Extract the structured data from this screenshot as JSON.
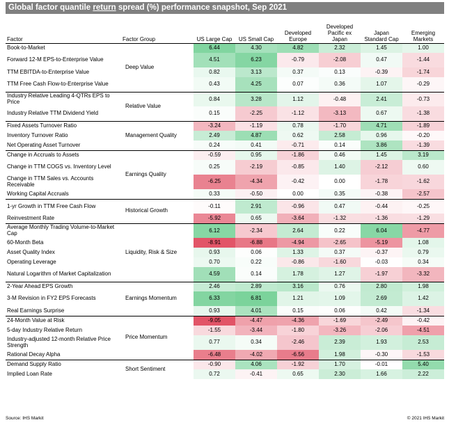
{
  "title": {
    "before": "Global factor quantile ",
    "underlined": "return",
    "after": " spread (%) performance snapshot, Sep 2021"
  },
  "headers": {
    "factor": "Factor",
    "group": "Factor Group",
    "columns": [
      "US Large Cap",
      "US Small Cap",
      "Developed Europe",
      "Developed Pacific ex Japan",
      "Japan Standard Cap",
      "Emerging Markets"
    ]
  },
  "groups": [
    {
      "name": "Deep Value",
      "rows": [
        {
          "factor": "Book-to-Market",
          "values": [
            "6.44",
            "4.30",
            "4.82",
            "2.32",
            "1.45",
            "1.00"
          ]
        },
        {
          "factor": "Forward 12-M EPS-to-Enterprise Value",
          "values": [
            "4.51",
            "6.23",
            "-0.79",
            "-2.08",
            "0.47",
            "-1.44"
          ]
        },
        {
          "factor": "TTM EBITDA-to-Enterprise Value",
          "values": [
            "0.82",
            "3.13",
            "0.37",
            "0.13",
            "-0.39",
            "-1.74"
          ]
        },
        {
          "factor": "TTM Free Cash Flow-to-Enterprise Value",
          "values": [
            "0.43",
            "4.25",
            "0.07",
            "0.36",
            "1.07",
            "-0.29"
          ]
        }
      ]
    },
    {
      "name": "Relative Value",
      "rows": [
        {
          "factor": "Industry Relative Leading 4-QTRs EPS to Price",
          "values": [
            "0.84",
            "3.28",
            "1.12",
            "-0.48",
            "2.41",
            "-0.73"
          ]
        },
        {
          "factor": "Industry Relative TTM Dividend Yield",
          "values": [
            "0.15",
            "-2.25",
            "-1.12",
            "-3.13",
            "0.67",
            "-1.38"
          ]
        }
      ]
    },
    {
      "name": "Management Quality",
      "rows": [
        {
          "factor": "Fixed Assets Turnover Ratio",
          "values": [
            "-3.24",
            "-1.19",
            "0.78",
            "-1.70",
            "4.71",
            "-1.89"
          ]
        },
        {
          "factor": "Inventory Turnover Ratio",
          "values": [
            "2.49",
            "4.87",
            "0.62",
            "2.58",
            "0.96",
            "-0.20"
          ]
        },
        {
          "factor": "Net Operating Asset Turnover",
          "values": [
            "0.24",
            "0.41",
            "-0.71",
            "0.14",
            "3.86",
            "-1.39"
          ]
        }
      ]
    },
    {
      "name": "Earnings Quality",
      "rows": [
        {
          "factor": "Change in Accruals to Assets",
          "values": [
            "-0.59",
            "0.95",
            "-1.86",
            "0.46",
            "1.45",
            "3.19"
          ]
        },
        {
          "factor": "Change in TTM COGS vs. Inventory Level",
          "values": [
            "0.25",
            "-2.19",
            "-0.85",
            "1.40",
            "-2.12",
            "0.60"
          ]
        },
        {
          "factor": "Change in TTM Sales vs. Accounts Receivable",
          "values": [
            "-6.25",
            "-4.34",
            "-0.42",
            "0.00",
            "-1.78",
            "-1.62"
          ]
        },
        {
          "factor": "Working Capital Accruals",
          "values": [
            "0.33",
            "-0.50",
            "0.00",
            "0.35",
            "-0.38",
            "-2.57"
          ]
        }
      ]
    },
    {
      "name": "Historical Growth",
      "rows": [
        {
          "factor": "1-yr Growth in TTM Free Cash Flow",
          "values": [
            "-0.11",
            "2.91",
            "-0.96",
            "0.47",
            "-0.44",
            "-0.25"
          ]
        },
        {
          "factor": "Reinvestment Rate",
          "values": [
            "-5.92",
            "0.65",
            "-3.64",
            "-1.32",
            "-1.36",
            "-1.29"
          ]
        }
      ]
    },
    {
      "name": "Liquidity, Risk & Size",
      "rows": [
        {
          "factor": "Average Monthly Trading Volume-to-Market Cap",
          "values": [
            "6.12",
            "-2.34",
            "2.64",
            "0.22",
            "6.04",
            "-4.77"
          ]
        },
        {
          "factor": "60-Month Beta",
          "values": [
            "-8.91",
            "-6.88",
            "-4.94",
            "-2.65",
            "-5.19",
            "1.08"
          ]
        },
        {
          "factor": "Asset Quality Index",
          "values": [
            "0.93",
            "0.06",
            "1.33",
            "0.37",
            "-0.37",
            "0.79"
          ]
        },
        {
          "factor": "Operating Leverage",
          "values": [
            "0.70",
            "0.22",
            "-0.86",
            "-1.60",
            "-0.03",
            "0.34"
          ]
        },
        {
          "factor": "Natural Logarithm of Market Capitalization",
          "values": [
            "4.59",
            "0.14",
            "1.78",
            "1.27",
            "-1.97",
            "-3.32"
          ]
        }
      ]
    },
    {
      "name": "Earnings Momentum",
      "rows": [
        {
          "factor": "2-Year Ahead EPS Growth",
          "values": [
            "2.46",
            "2.89",
            "3.16",
            "0.76",
            "2.80",
            "1.98"
          ]
        },
        {
          "factor": "3-M Revision in FY2 EPS Forecasts",
          "values": [
            "6.33",
            "6.81",
            "1.21",
            "1.09",
            "2.69",
            "1.42"
          ]
        },
        {
          "factor": "Real Earnings Surprise",
          "values": [
            "0.93",
            "4.01",
            "0.15",
            "0.06",
            "0.42",
            "-1.34"
          ]
        }
      ]
    },
    {
      "name": "Price Momentum",
      "rows": [
        {
          "factor": "24-Month Value at Risk",
          "values": [
            "-9.05",
            "-4.47",
            "-4.36",
            "-1.69",
            "-2.49",
            "-0.42"
          ]
        },
        {
          "factor": "5-day Industry Relative Return",
          "values": [
            "-1.55",
            "-3.44",
            "-1.80",
            "-3.26",
            "-2.06",
            "-4.51"
          ]
        },
        {
          "factor": "Industry-adjusted 12-month Relative Price Strength",
          "values": [
            "0.77",
            "0.34",
            "-2.46",
            "2.39",
            "1.93",
            "2.53"
          ]
        },
        {
          "factor": "Rational Decay Alpha",
          "values": [
            "-6.48",
            "-4.02",
            "-6.56",
            "1.98",
            "-0.30",
            "-1.53"
          ]
        }
      ]
    },
    {
      "name": "Short Sentiment",
      "rows": [
        {
          "factor": "Demand Supply Ratio",
          "values": [
            "-0.90",
            "4.06",
            "-1.92",
            "1.70",
            "-0.01",
            "5.40"
          ]
        },
        {
          "factor": "Implied Loan Rate",
          "values": [
            "0.72",
            "-0.41",
            "0.65",
            "2.30",
            "1.66",
            "2.22"
          ]
        }
      ]
    }
  ],
  "colors": {
    "positive": "#4fc47a",
    "negative": "#e04b5f",
    "title_bar": "#808080"
  },
  "footer": {
    "source": "Source: IHS Markit",
    "copyright": "© 2021 IHS Markit"
  }
}
